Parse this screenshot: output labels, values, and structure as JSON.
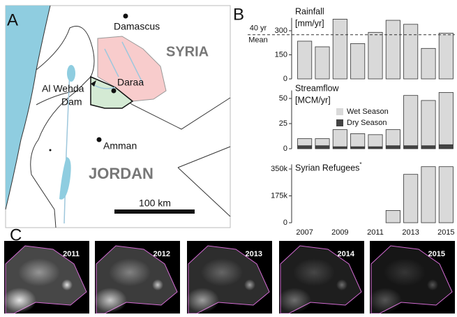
{
  "panels": [
    "A",
    "B",
    "C"
  ],
  "map": {
    "labels": {
      "damascus": "Damascus",
      "syria": "SYRIA",
      "daraa": "Daraa",
      "dam_line1": "Al Wehda",
      "dam_line2": "Dam",
      "amman": "Amman",
      "jordan": "JORDAN",
      "scale": "100 km"
    }
  },
  "images": {
    "years": [
      "2011",
      "2012",
      "2013",
      "2014",
      "2015"
    ]
  },
  "chart_data": [
    {
      "type": "bar",
      "title": "Rainfall",
      "unit": "[mm/yr]",
      "values": [
        235,
        200,
        372,
        220,
        290,
        365,
        340,
        190,
        285
      ],
      "color": "#d9d9d9",
      "ylim": [
        0,
        380
      ],
      "yticks": [
        0,
        150,
        300
      ],
      "mean_line": {
        "value": 275,
        "label_lines": [
          "40 yr",
          "Mean"
        ]
      }
    },
    {
      "type": "stacked_bar",
      "title": "Streamflow",
      "unit": "[MCM/yr]",
      "series": [
        {
          "name": "Dry Season",
          "color": "#444444",
          "values": [
            3,
            3,
            2,
            2,
            2,
            3,
            3,
            3,
            4
          ]
        },
        {
          "name": "Wet Season",
          "color": "#d9d9d9",
          "values": [
            7,
            7,
            17,
            13,
            12,
            16,
            50,
            45,
            52
          ]
        }
      ],
      "ylim": [
        0,
        58
      ],
      "yticks": [
        0,
        25,
        50
      ]
    },
    {
      "type": "bar",
      "title": "Syrian Refugees",
      "title_mark": "*",
      "categories": [
        "2007",
        null,
        "2009",
        null,
        "2011",
        null,
        "2013",
        null,
        "2015"
      ],
      "values": [
        0,
        0,
        0,
        0,
        0,
        80000,
        315000,
        365000,
        365000
      ],
      "color": "#d9d9d9",
      "ylim": [
        0,
        380000
      ],
      "yticks": [
        0,
        {
          "value": 175000,
          "label": "175k"
        },
        {
          "value": 350000,
          "label": "350k"
        }
      ]
    }
  ]
}
